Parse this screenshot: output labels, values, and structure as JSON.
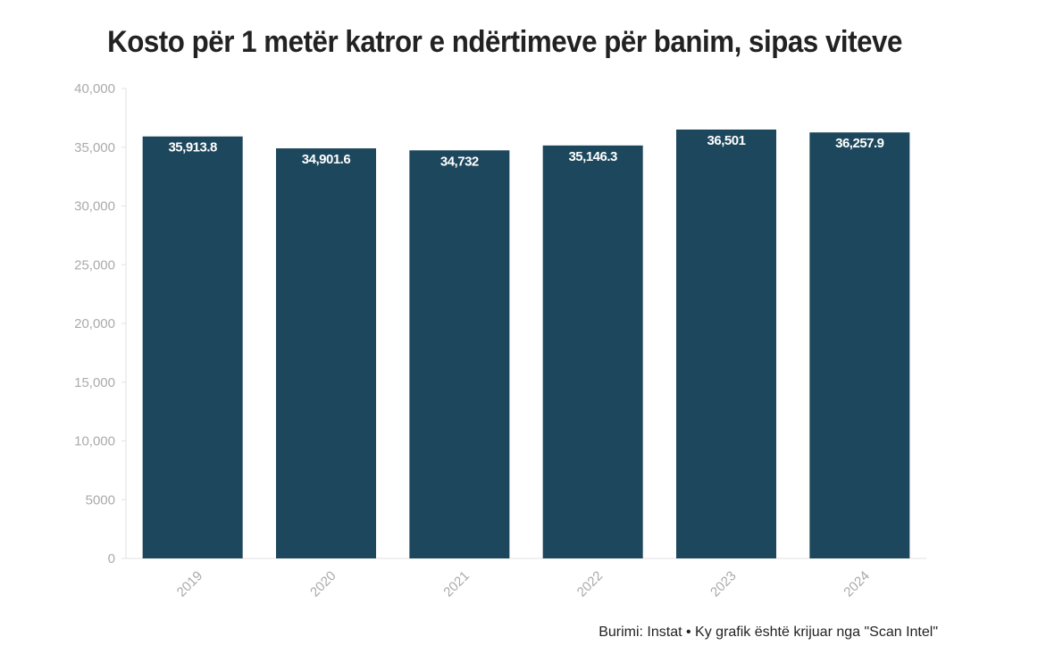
{
  "chart_data": {
    "type": "bar",
    "title": "Kosto për 1 metër katror e ndërtimeve për banim, sipas viteve",
    "categories": [
      "2019",
      "2020",
      "2021",
      "2022",
      "2023",
      "2024"
    ],
    "values": [
      35913.8,
      34901.6,
      34732,
      35146.3,
      36501,
      36257.9
    ],
    "value_labels": [
      "35,913.8",
      "34,901.6",
      "34,732",
      "35,146.3",
      "36,501",
      "36,257.9"
    ],
    "ylim": [
      0,
      40000
    ],
    "yticks": [
      0,
      5000,
      10000,
      15000,
      20000,
      25000,
      30000,
      35000,
      40000
    ],
    "ytick_labels": [
      "0",
      "5000",
      "10,000",
      "15,000",
      "20,000",
      "25,000",
      "30,000",
      "35,000",
      "40,000"
    ],
    "xlabel": "",
    "ylabel": "",
    "grid": false,
    "bar_color": "#1c475c",
    "label_color": "#ffffff",
    "axis_label_color": "#aaaaaa"
  },
  "source": "Burimi: Instat • Ky grafik është krijuar nga \"Scan Intel\""
}
